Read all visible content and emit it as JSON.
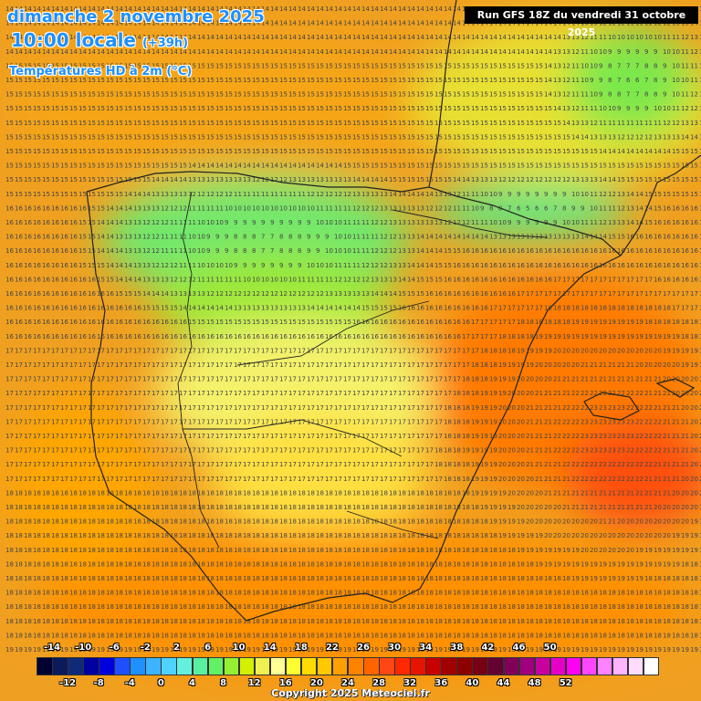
{
  "header": {
    "date": "dimanche 2 novembre 2025",
    "time": "10:00 locale",
    "lead": "(+39h)",
    "variable": "Températures HD à 2m (°C)",
    "run": "Run GFS 18Z du vendredi 31 octobre 2025"
  },
  "copyright": "Copyright 2025 Meteociel.fr",
  "legend": {
    "top_labels": [
      "-14",
      "-10",
      "-6",
      "-2",
      "2",
      "6",
      "10",
      "14",
      "18",
      "22",
      "26",
      "30",
      "34",
      "38",
      "42",
      "46",
      "50"
    ],
    "bottom_labels": [
      "-12",
      "-8",
      "-4",
      "0",
      "4",
      "8",
      "12",
      "16",
      "20",
      "24",
      "28",
      "32",
      "36",
      "40",
      "44",
      "48",
      "52"
    ],
    "colors": [
      "#000033",
      "#0a1a5a",
      "#102a7a",
      "#0000a0",
      "#0000dc",
      "#1e50ff",
      "#1e90ff",
      "#3cb4ff",
      "#50d2ff",
      "#64f0dc",
      "#5af0a0",
      "#64f064",
      "#96f032",
      "#d2f000",
      "#f0f050",
      "#ffff96",
      "#ffff32",
      "#ffdc00",
      "#ffc800",
      "#ffa000",
      "#ff8200",
      "#ff6400",
      "#ff4614",
      "#ff2800",
      "#e61400",
      "#c80000",
      "#a00000",
      "#8c0000",
      "#780014",
      "#640032",
      "#82005a",
      "#a0007d",
      "#c800a0",
      "#e600c8",
      "#ff00f0",
      "#ff46ff",
      "#ff82ff",
      "#ffb4ff",
      "#ffdcff",
      "#ffffff"
    ]
  },
  "map": {
    "region": "Péninsule ibérique",
    "isolines": "valeurs de température en °C"
  }
}
